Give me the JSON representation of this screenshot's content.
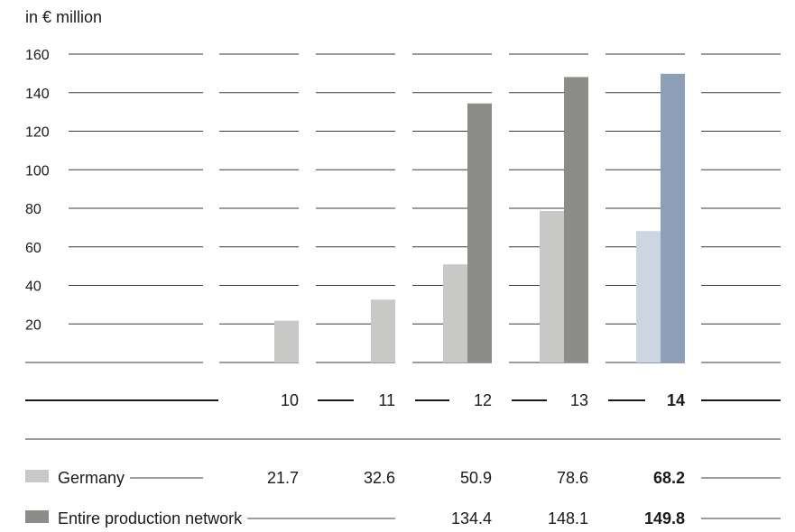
{
  "chart_data": {
    "type": "bar",
    "unit_label": "in € million",
    "ylim": [
      0,
      160
    ],
    "yticks": [
      20,
      40,
      60,
      80,
      100,
      120,
      140,
      160
    ],
    "categories": [
      "10",
      "11",
      "12",
      "13",
      "14"
    ],
    "highlight_category": "14",
    "series": [
      {
        "name": "Germany",
        "values": [
          21.7,
          32.6,
          50.9,
          78.6,
          68.2
        ],
        "value_labels": [
          "21.7",
          "32.6",
          "50.9",
          "78.6",
          "68.2"
        ],
        "color": "#c8c8c7",
        "highlight_color": "#ccd6e3"
      },
      {
        "name": "Entire production network",
        "values": [
          null,
          null,
          134.4,
          148.1,
          149.8
        ],
        "value_labels": [
          "",
          "",
          "134.4",
          "148.1",
          "149.8"
        ],
        "color": "#8c8c88",
        "highlight_color": "#8e9fb8"
      }
    ]
  }
}
